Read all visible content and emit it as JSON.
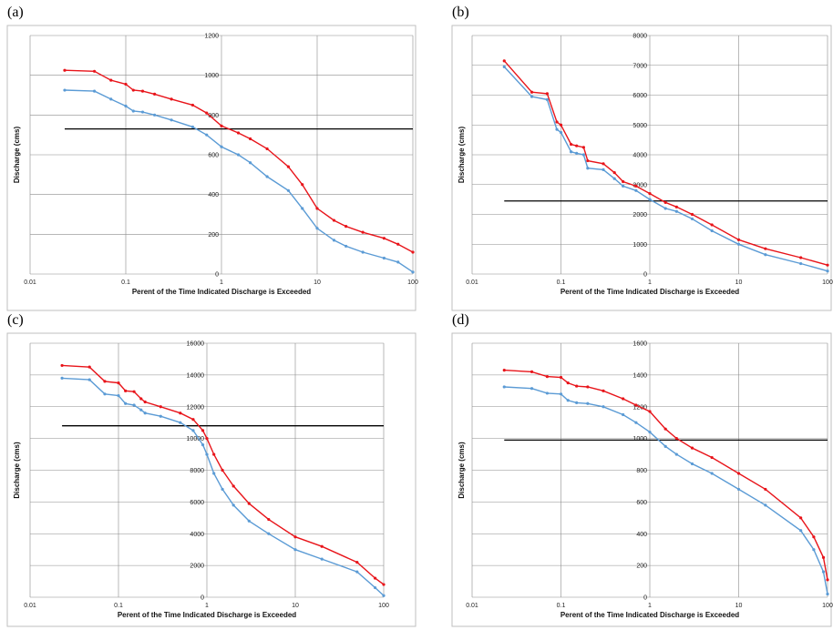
{
  "panel_labels": [
    "(a)",
    "(b)",
    "(c)",
    "(d)"
  ],
  "colors": {
    "series_1": "#e8141a",
    "series_2": "#5b9bd5",
    "threshold": "#000000",
    "grid": "#8c8c8c",
    "frame": "#bfbfbf"
  },
  "chart_data": [
    {
      "type": "line",
      "panel": "(a)",
      "xlabel": "Perent of the Time Indicated Discharge is Exceeded",
      "ylabel": "Discharge (cms)",
      "xscale": "log",
      "xlim": [
        0.01,
        100
      ],
      "ylim": [
        0,
        1200
      ],
      "x_ticks": [
        0.01,
        0.1,
        1,
        10,
        100
      ],
      "x_tick_labels": [
        "0.01",
        "0.1",
        "1",
        "10",
        "100"
      ],
      "y_ticks": [
        0,
        200,
        400,
        600,
        800,
        1000,
        1200
      ],
      "y_tick_labels": [
        "0",
        "200",
        "400",
        "600",
        "800",
        "1000",
        "1200"
      ],
      "grid": true,
      "threshold_line": 730,
      "series": [
        {
          "x": [
            0.023,
            0.047,
            0.07,
            0.1,
            0.12,
            0.15,
            0.2,
            0.3,
            0.5,
            0.7,
            1,
            1.5,
            2,
            3,
            5,
            7,
            10,
            15,
            20,
            30,
            50,
            70,
            100
          ],
          "y": [
            1025,
            1020,
            975,
            955,
            925,
            920,
            905,
            880,
            850,
            810,
            745,
            710,
            680,
            630,
            540,
            450,
            330,
            270,
            240,
            210,
            180,
            150,
            110
          ]
        },
        {
          "x": [
            0.023,
            0.047,
            0.07,
            0.1,
            0.12,
            0.15,
            0.2,
            0.3,
            0.5,
            0.7,
            1,
            1.5,
            2,
            3,
            5,
            7,
            10,
            15,
            20,
            30,
            50,
            70,
            100
          ],
          "y": [
            925,
            920,
            880,
            845,
            820,
            815,
            800,
            775,
            740,
            700,
            640,
            600,
            560,
            490,
            420,
            330,
            230,
            170,
            140,
            110,
            80,
            60,
            10
          ]
        }
      ]
    },
    {
      "type": "line",
      "panel": "(b)",
      "xlabel": "Perent of the Time Indicated Discharge is Exceeded",
      "ylabel": "Discharge (cms)",
      "xscale": "log",
      "xlim": [
        0.01,
        100
      ],
      "ylim": [
        0,
        8000
      ],
      "x_ticks": [
        0.01,
        0.1,
        1,
        10,
        100
      ],
      "x_tick_labels": [
        "0.01",
        "0.1",
        "1",
        "10",
        "100"
      ],
      "y_ticks": [
        0,
        1000,
        2000,
        3000,
        4000,
        5000,
        6000,
        7000,
        8000
      ],
      "y_tick_labels": [
        "0",
        "1000",
        "2000",
        "3000",
        "4000",
        "5000",
        "6000",
        "7000",
        "8000"
      ],
      "grid": true,
      "threshold_line": 2450,
      "series": [
        {
          "x": [
            0.023,
            0.047,
            0.07,
            0.09,
            0.1,
            0.13,
            0.15,
            0.18,
            0.2,
            0.3,
            0.4,
            0.5,
            0.7,
            1,
            1.5,
            2,
            3,
            5,
            10,
            20,
            50,
            100
          ],
          "y": [
            7150,
            6100,
            6050,
            5100,
            5000,
            4350,
            4300,
            4250,
            3800,
            3700,
            3400,
            3100,
            2950,
            2700,
            2400,
            2250,
            2000,
            1650,
            1150,
            850,
            550,
            300
          ]
        },
        {
          "x": [
            0.023,
            0.047,
            0.07,
            0.09,
            0.1,
            0.13,
            0.15,
            0.18,
            0.2,
            0.3,
            0.4,
            0.5,
            0.7,
            1,
            1.5,
            2,
            3,
            5,
            10,
            20,
            50,
            100
          ],
          "y": [
            6950,
            5950,
            5850,
            4850,
            4750,
            4100,
            4050,
            4000,
            3550,
            3500,
            3200,
            2950,
            2800,
            2500,
            2200,
            2100,
            1850,
            1450,
            1000,
            650,
            350,
            100
          ]
        }
      ]
    },
    {
      "type": "line",
      "panel": "(c)",
      "xlabel": "Perent of the Time Indicated Discharge is Exceeded",
      "ylabel": "Discharge (cms)",
      "xscale": "log",
      "xlim": [
        0.01,
        100
      ],
      "ylim": [
        0,
        16000
      ],
      "x_ticks": [
        0.01,
        0.1,
        1,
        10,
        100
      ],
      "x_tick_labels": [
        "0.01",
        "0.1",
        "1",
        "10",
        "100"
      ],
      "y_ticks": [
        0,
        2000,
        4000,
        6000,
        8000,
        10000,
        12000,
        14000,
        16000
      ],
      "y_tick_labels": [
        "0",
        "2000",
        "4000",
        "6000",
        "8000",
        "10000",
        "12000",
        "14000",
        "16000"
      ],
      "grid": true,
      "threshold_line": 10800,
      "series": [
        {
          "x": [
            0.023,
            0.047,
            0.07,
            0.1,
            0.12,
            0.15,
            0.18,
            0.2,
            0.3,
            0.5,
            0.7,
            0.9,
            1,
            1.2,
            1.5,
            2,
            3,
            5,
            10,
            20,
            50,
            80,
            100
          ],
          "y": [
            14600,
            14500,
            13600,
            13500,
            13000,
            12950,
            12500,
            12300,
            12000,
            11600,
            11200,
            10500,
            10000,
            9000,
            8000,
            7000,
            5900,
            4900,
            3800,
            3200,
            2200,
            1200,
            800
          ]
        },
        {
          "x": [
            0.023,
            0.047,
            0.07,
            0.1,
            0.12,
            0.15,
            0.18,
            0.2,
            0.3,
            0.5,
            0.7,
            0.9,
            1,
            1.2,
            1.5,
            2,
            3,
            5,
            10,
            20,
            50,
            80,
            100
          ],
          "y": [
            13800,
            13700,
            12800,
            12700,
            12200,
            12100,
            11800,
            11600,
            11400,
            11000,
            10500,
            9600,
            9000,
            7800,
            6800,
            5800,
            4800,
            4000,
            3000,
            2400,
            1600,
            600,
            100
          ]
        }
      ]
    },
    {
      "type": "line",
      "panel": "(d)",
      "xlabel": "Perent of the Time Indicated Discharge is Exceeded",
      "ylabel": "Discharge (cms)",
      "xscale": "log",
      "xlim": [
        0.01,
        100
      ],
      "ylim": [
        0,
        1600
      ],
      "x_ticks": [
        0.01,
        0.1,
        1,
        10,
        100
      ],
      "x_tick_labels": [
        "0.01",
        "0.1",
        "1",
        "10",
        "100"
      ],
      "y_ticks": [
        0,
        200,
        400,
        600,
        800,
        1000,
        1200,
        1400,
        1600
      ],
      "y_tick_labels": [
        "0",
        "200",
        "400",
        "600",
        "800",
        "1000",
        "1200",
        "1400",
        "1600"
      ],
      "grid": true,
      "threshold_line": 990,
      "series": [
        {
          "x": [
            0.023,
            0.047,
            0.07,
            0.1,
            0.12,
            0.15,
            0.2,
            0.3,
            0.5,
            0.7,
            1,
            1.5,
            2,
            3,
            5,
            10,
            20,
            50,
            70,
            90,
            100
          ],
          "y": [
            1430,
            1420,
            1390,
            1385,
            1350,
            1330,
            1325,
            1300,
            1250,
            1210,
            1170,
            1060,
            1000,
            940,
            880,
            780,
            680,
            500,
            380,
            250,
            110
          ]
        },
        {
          "x": [
            0.023,
            0.047,
            0.07,
            0.1,
            0.12,
            0.15,
            0.2,
            0.3,
            0.5,
            0.7,
            1,
            1.5,
            2,
            3,
            5,
            10,
            20,
            50,
            70,
            90,
            100
          ],
          "y": [
            1325,
            1315,
            1285,
            1280,
            1240,
            1225,
            1220,
            1200,
            1150,
            1100,
            1040,
            950,
            900,
            840,
            780,
            680,
            580,
            420,
            300,
            160,
            20
          ]
        }
      ]
    }
  ]
}
